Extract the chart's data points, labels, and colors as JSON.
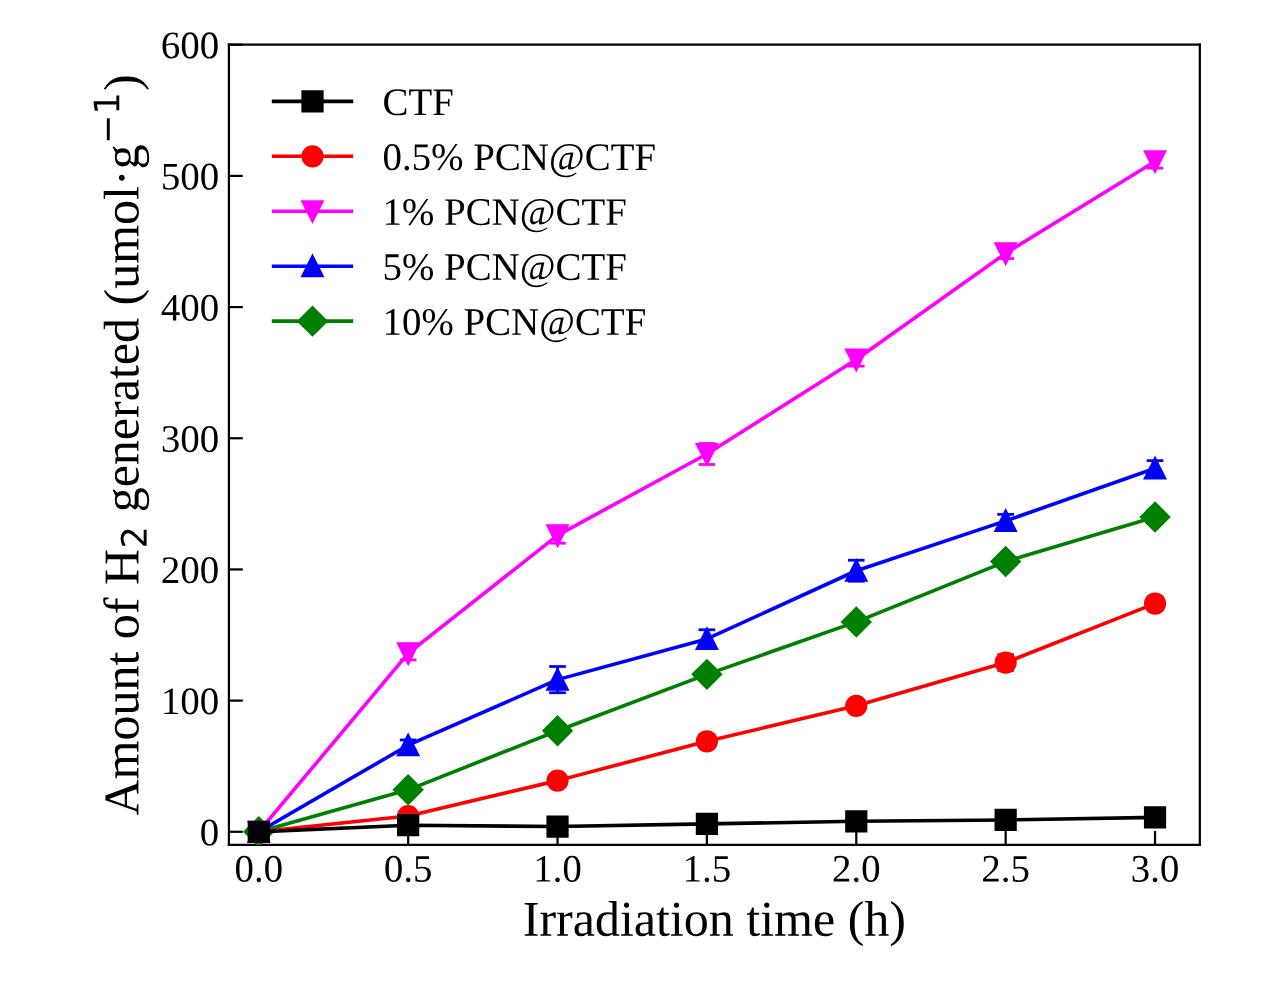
{
  "chart_data": {
    "type": "line",
    "xlabel": "Irradiation time (h)",
    "ylabel": "Amount of H$_{2}$ generated (umol·g$^{−1}$)",
    "x": [
      0,
      0.5,
      1.0,
      1.5,
      2.0,
      2.5,
      3.0
    ],
    "xlim": [
      -0.1,
      3.15
    ],
    "xticks": [
      {
        "value": 0,
        "label": "0.0"
      },
      0.5,
      {
        "value": 1,
        "label": "1.0"
      },
      1.5,
      {
        "value": 2,
        "label": "2.0"
      },
      2.5,
      {
        "value": 3,
        "label": "3.0"
      }
    ],
    "ylim": [
      -10,
      600
    ],
    "yticks": [
      0,
      100,
      200,
      300,
      400,
      500,
      600
    ],
    "legend": "top left",
    "grid": false,
    "line_style": "solid",
    "series": [
      {
        "name": "CTF",
        "color": "#000000",
        "marker": "square",
        "values": [
          0,
          5,
          4,
          6,
          8,
          9,
          11
        ]
      },
      {
        "name": "0.5% PCN@CTF",
        "color": "#ff0000",
        "marker": "circle",
        "values": [
          0,
          12,
          39,
          69,
          96,
          129,
          174
        ],
        "errors": [
          null,
          3,
          4,
          5,
          3,
          6,
          5
        ]
      },
      {
        "name": "1% PCN@CTF",
        "color": "#ff00ff",
        "marker": "triangle_down",
        "values": [
          0,
          136,
          226,
          288,
          360,
          441,
          511
        ],
        "errors": [
          null,
          5,
          6,
          8,
          5,
          4,
          5
        ]
      },
      {
        "name": "5% PCN@CTF",
        "color": "#0000ff",
        "marker": "triangle",
        "values": [
          0,
          66,
          116,
          147,
          199,
          237,
          277
        ],
        "errors": [
          null,
          4,
          10,
          7,
          8,
          5,
          6
        ]
      },
      {
        "name": "10% PCN@CTF",
        "color": "#008000",
        "marker": "diamond",
        "values": [
          0,
          32,
          77,
          120,
          160,
          206,
          240
        ],
        "errors": [
          null,
          3,
          4,
          4,
          3,
          4,
          5
        ]
      }
    ]
  }
}
